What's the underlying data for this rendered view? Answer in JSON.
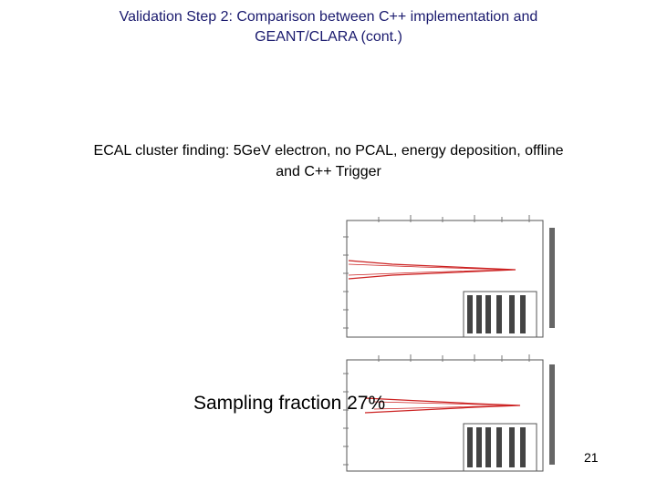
{
  "slide": {
    "title_line1": "Validation Step 2: Comparison between C++ implementation and",
    "title_line2": "GEANT/CLARA (cont.)",
    "subtitle_line1": "ECAL cluster finding: 5GeV electron, no PCAL, energy deposition, offline",
    "subtitle_line2": "and C++ Trigger",
    "caption": "Sampling fraction 27%",
    "page_number": "21"
  },
  "colors": {
    "title": "#1a1a6e",
    "histogram_line": "#cc2222",
    "frame": "#555555"
  },
  "figures": [
    {
      "name": "top-histogram",
      "orientation": "rotated-90"
    },
    {
      "name": "bottom-histogram",
      "orientation": "rotated-90"
    }
  ]
}
